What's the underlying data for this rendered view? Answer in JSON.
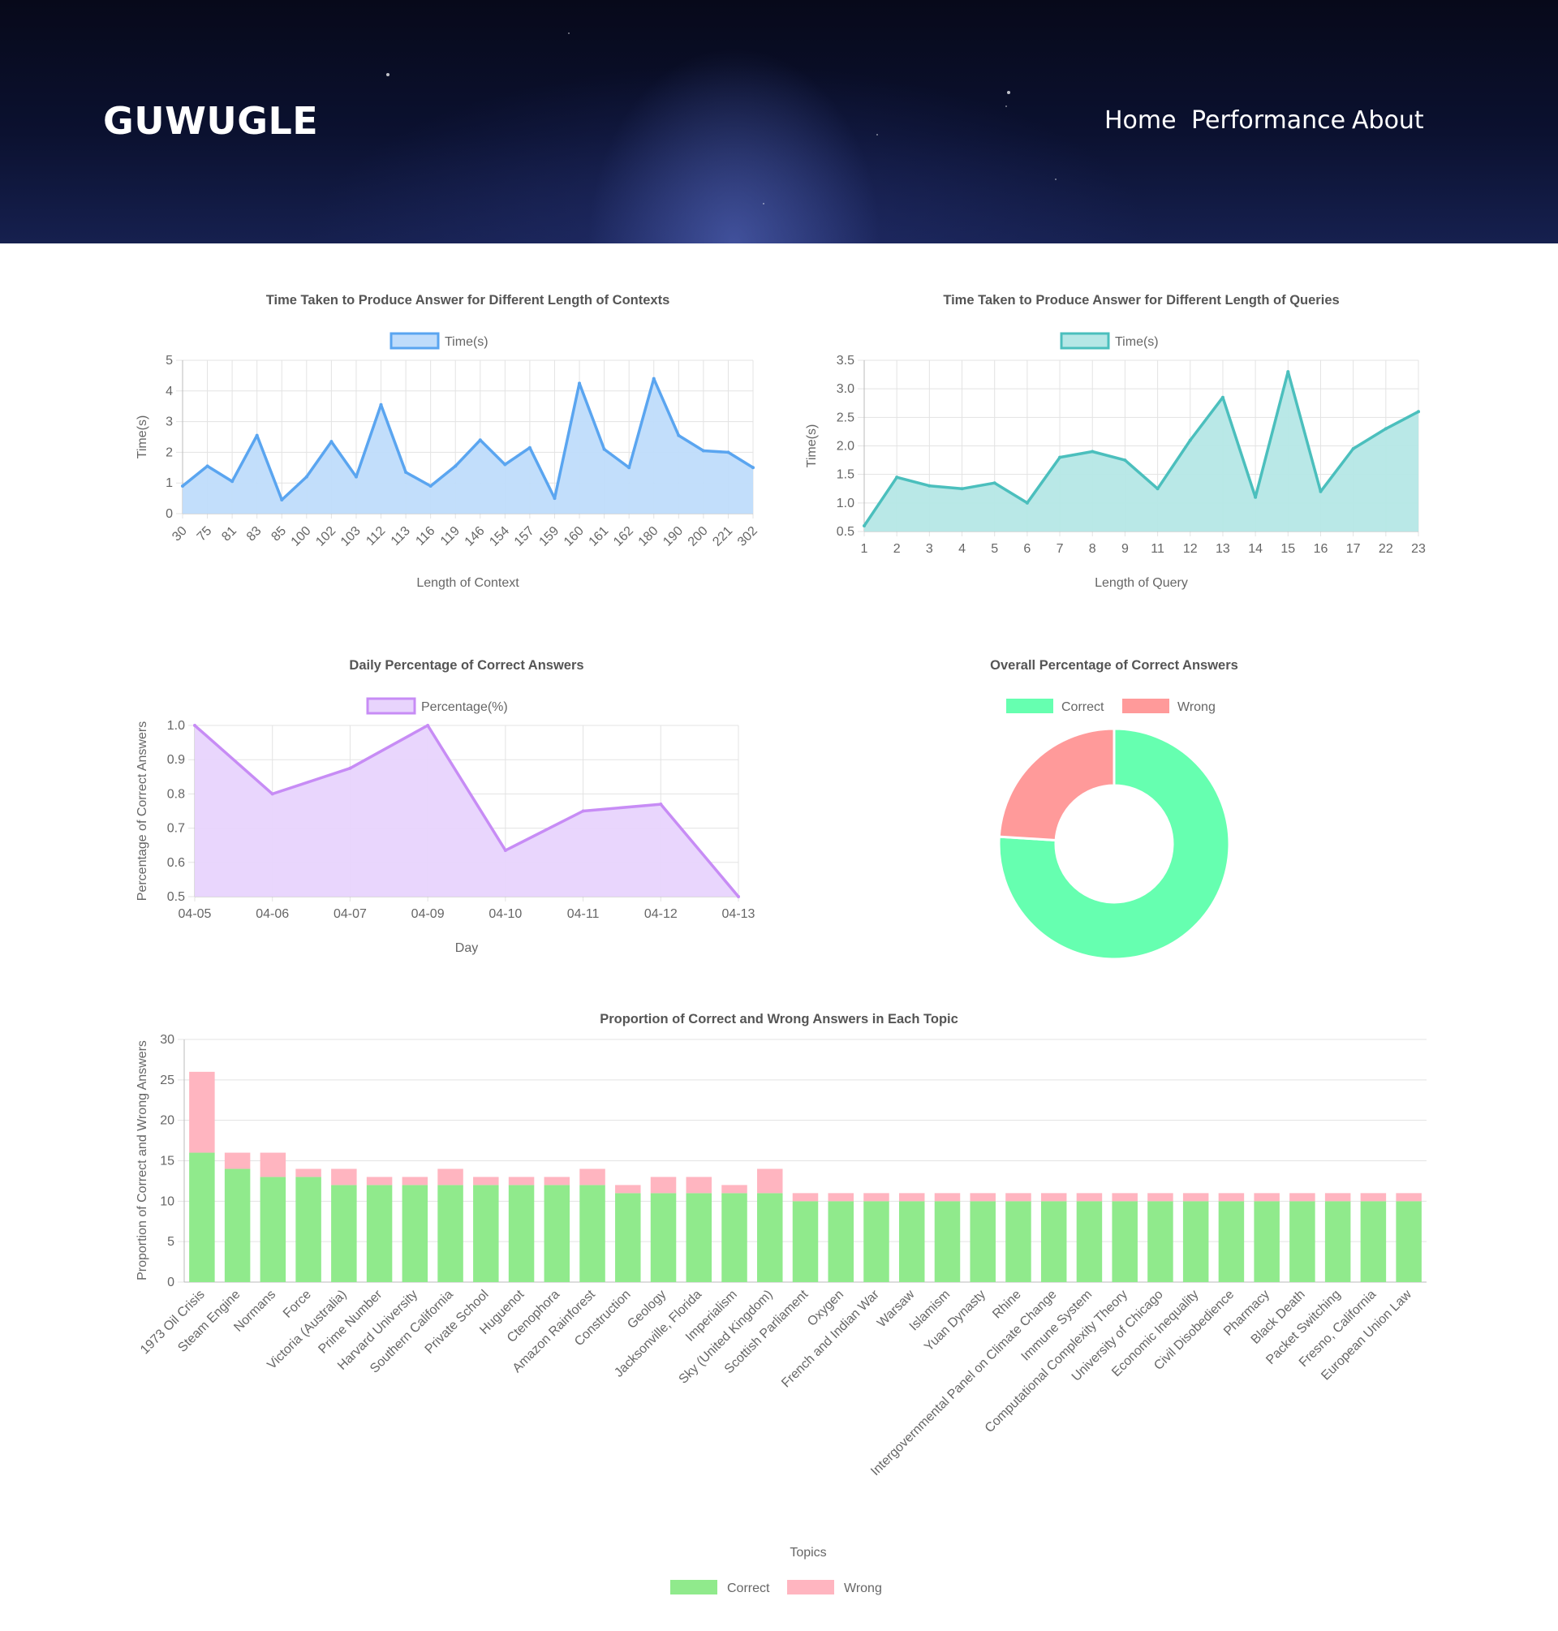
{
  "header": {
    "brand": "GUWUGLE",
    "nav": [
      "Home",
      "Performance",
      "About"
    ]
  },
  "colors": {
    "blue_line": "#5aa5f0",
    "blue_fill": "#bfdcfb",
    "teal_line": "#4bbfbd",
    "teal_fill": "#b5e7e6",
    "purple_line": "#c78cf5",
    "purple_fill": "#e8d4fd",
    "correct": "#66ffb0",
    "wrong": "#ff9a9a",
    "bar_correct": "#90ea8c",
    "bar_wrong": "#ffb5c0"
  },
  "chart_data": [
    {
      "id": "contexts",
      "type": "area",
      "title": "Time Taken to Produce Answer for Different Length of Contexts",
      "series_name": "Time(s)",
      "xlabel": "Length of Context",
      "ylabel": "Time(s)",
      "categories": [
        "30",
        "75",
        "81",
        "83",
        "85",
        "100",
        "102",
        "103",
        "112",
        "113",
        "116",
        "119",
        "146",
        "154",
        "157",
        "159",
        "160",
        "161",
        "162",
        "180",
        "190",
        "200",
        "221",
        "302"
      ],
      "values": [
        0.9,
        1.55,
        1.05,
        2.55,
        0.45,
        1.2,
        2.35,
        1.2,
        3.55,
        1.35,
        0.9,
        1.55,
        2.4,
        1.6,
        2.15,
        0.5,
        4.25,
        2.1,
        1.5,
        4.4,
        2.55,
        2.05,
        2.0,
        1.5
      ],
      "ylim": [
        0,
        5
      ],
      "yticks": [
        "0",
        "1",
        "2",
        "3",
        "4",
        "5"
      ]
    },
    {
      "id": "queries",
      "type": "area",
      "title": "Time Taken to Produce Answer for Different Length of Queries",
      "series_name": "Time(s)",
      "xlabel": "Length of Query",
      "ylabel": "Time(s)",
      "categories": [
        "1",
        "2",
        "3",
        "4",
        "5",
        "6",
        "7",
        "8",
        "9",
        "11",
        "12",
        "13",
        "14",
        "15",
        "16",
        "17",
        "22",
        "23"
      ],
      "values": [
        0.6,
        1.45,
        1.3,
        1.25,
        1.35,
        1.0,
        1.8,
        1.9,
        1.75,
        1.25,
        2.1,
        2.85,
        1.1,
        3.3,
        1.2,
        1.95,
        2.3,
        2.6
      ],
      "ylim": [
        0.5,
        3.5
      ],
      "yticks": [
        "0.5",
        "1.0",
        "1.5",
        "2.0",
        "2.5",
        "3.0",
        "3.5"
      ]
    },
    {
      "id": "daily",
      "type": "area",
      "title": "Daily Percentage of Correct Answers",
      "series_name": "Percentage(%)",
      "xlabel": "Day",
      "ylabel": "Percentage of Correct Answers",
      "categories": [
        "04-05",
        "04-06",
        "04-07",
        "04-09",
        "04-10",
        "04-11",
        "04-12",
        "04-13"
      ],
      "values": [
        1.0,
        0.8,
        0.875,
        1.0,
        0.635,
        0.75,
        0.77,
        0.5
      ],
      "ylim": [
        0.5,
        1.0
      ],
      "yticks": [
        "0.5",
        "0.6",
        "0.7",
        "0.8",
        "0.9",
        "1.0"
      ]
    },
    {
      "id": "overall",
      "type": "pie",
      "title": "Overall Percentage of Correct Answers",
      "labels": [
        "Correct",
        "Wrong"
      ],
      "values": [
        76,
        24
      ]
    },
    {
      "id": "topics",
      "type": "bar",
      "stacked": true,
      "title": "Proportion of Correct and Wrong Answers in Each Topic",
      "xlabel": "Topics",
      "ylabel": "Proportion of Correct and Wrong Answers",
      "ylim": [
        0,
        30
      ],
      "yticks": [
        "0",
        "5",
        "10",
        "15",
        "20",
        "25",
        "30"
      ],
      "categories": [
        "1973 Oil Crisis",
        "Steam Engine",
        "Normans",
        "Force",
        "Victoria (Australia)",
        "Prime Number",
        "Harvard University",
        "Southern California",
        "Private School",
        "Huguenot",
        "Ctenophora",
        "Amazon Rainforest",
        "Construction",
        "Geology",
        "Jacksonville, Florida",
        "Imperialism",
        "Sky (United Kingdom)",
        "Scottish Parliament",
        "Oxygen",
        "French and Indian War",
        "Warsaw",
        "Islamism",
        "Yuan Dynasty",
        "Rhine",
        "Intergovernmental Panel on Climate Change",
        "Immune System",
        "Computational Complexity Theory",
        "University of Chicago",
        "Economic Inequality",
        "Civil Disobedience",
        "Pharmacy",
        "Black Death",
        "Packet Switching",
        "Fresno, California",
        "European Union Law"
      ],
      "series": [
        {
          "name": "Correct",
          "values": [
            16,
            14,
            13,
            13,
            12,
            12,
            12,
            12,
            12,
            12,
            12,
            12,
            11,
            11,
            11,
            11,
            11,
            10,
            10,
            10,
            10,
            10,
            10,
            10,
            10,
            10,
            10,
            10,
            10,
            10,
            10,
            10,
            10,
            10,
            10
          ]
        },
        {
          "name": "Wrong",
          "values": [
            10,
            2,
            3,
            1,
            2,
            1,
            1,
            2,
            1,
            1,
            1,
            2,
            1,
            2,
            2,
            1,
            3,
            1,
            1,
            1,
            1,
            1,
            1,
            1,
            1,
            1,
            1,
            1,
            1,
            1,
            1,
            1,
            1,
            1,
            1
          ]
        }
      ]
    }
  ]
}
